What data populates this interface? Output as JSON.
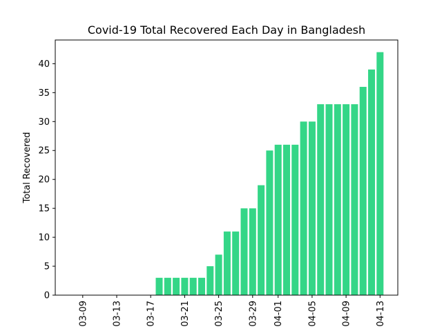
{
  "chart_data": {
    "type": "bar",
    "title": "Covid-19 Total Recovered Each Day in Bangladesh",
    "xlabel": "",
    "ylabel": "Total Recovered",
    "bar_color": "#34d687",
    "categories": [
      "03-08",
      "03-09",
      "03-10",
      "03-11",
      "03-12",
      "03-13",
      "03-14",
      "03-15",
      "03-16",
      "03-17",
      "03-18",
      "03-19",
      "03-20",
      "03-21",
      "03-22",
      "03-23",
      "03-24",
      "03-25",
      "03-26",
      "03-27",
      "03-28",
      "03-29",
      "03-30",
      "03-31",
      "04-01",
      "04-02",
      "04-03",
      "04-04",
      "04-05",
      "04-06",
      "04-07",
      "04-08",
      "04-09",
      "04-10",
      "04-11",
      "04-12",
      "04-13"
    ],
    "values": [
      0,
      0,
      0,
      0,
      0,
      0,
      0,
      0,
      0,
      0,
      3,
      3,
      3,
      3,
      3,
      3,
      5,
      7,
      11,
      11,
      15,
      15,
      19,
      25,
      26,
      26,
      26,
      30,
      30,
      33,
      33,
      33,
      33,
      33,
      36,
      39,
      42
    ],
    "x_ticks": [
      "03-09",
      "03-13",
      "03-17",
      "03-21",
      "03-25",
      "03-29",
      "04-01",
      "04-05",
      "04-09",
      "04-13"
    ],
    "ylim": [
      0,
      44.1
    ],
    "y_ticks": [
      0,
      5,
      10,
      15,
      20,
      25,
      30,
      35,
      40
    ],
    "grid": false,
    "legend": "none"
  }
}
